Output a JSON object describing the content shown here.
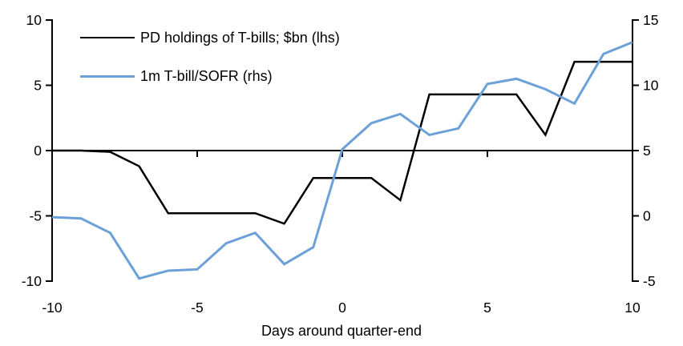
{
  "chart_data": {
    "type": "line",
    "title": "",
    "xlabel": "Days around quarter-end",
    "x_range": [
      -10,
      10
    ],
    "x": [
      -10,
      -9,
      -8,
      -7,
      -6,
      -5,
      -4,
      -3,
      -2,
      -1,
      0,
      1,
      2,
      3,
      4,
      5,
      6,
      7,
      8,
      9,
      10
    ],
    "series": [
      {
        "name": "PD holdings of T-bills; $bn (lhs)",
        "axis": "left",
        "color": "#000000",
        "values": [
          0,
          0,
          -0.1,
          -1.2,
          -4.8,
          -4.8,
          -4.8,
          -4.8,
          -5.6,
          -2.1,
          -2.1,
          -2.1,
          -3.8,
          4.3,
          4.3,
          4.3,
          4.3,
          1.2,
          6.8,
          6.8,
          6.8
        ]
      },
      {
        "name": "1m T-bill/SOFR (rhs)",
        "axis": "right",
        "color": "#6CA0D8",
        "values": [
          -0.1,
          -0.2,
          -1.3,
          -4.8,
          -4.2,
          -4.1,
          -2.1,
          -1.3,
          -3.7,
          -2.4,
          5.1,
          7.1,
          7.8,
          6.2,
          6.7,
          10.1,
          10.5,
          9.7,
          8.6,
          12.4,
          13.3
        ]
      }
    ],
    "left_axis": {
      "range": [
        -10,
        10
      ],
      "ticks": [
        10,
        5,
        0,
        -5,
        -10
      ]
    },
    "right_axis": {
      "range": [
        -5,
        15
      ],
      "ticks": [
        15,
        10,
        5,
        0,
        -5
      ]
    },
    "x_tick_labels": [
      -10,
      -5,
      0,
      5,
      10
    ],
    "x_tick_marks": [
      -5,
      0,
      5
    ],
    "grid": false,
    "legend_position": "top-left",
    "axis_color": "#000000"
  }
}
